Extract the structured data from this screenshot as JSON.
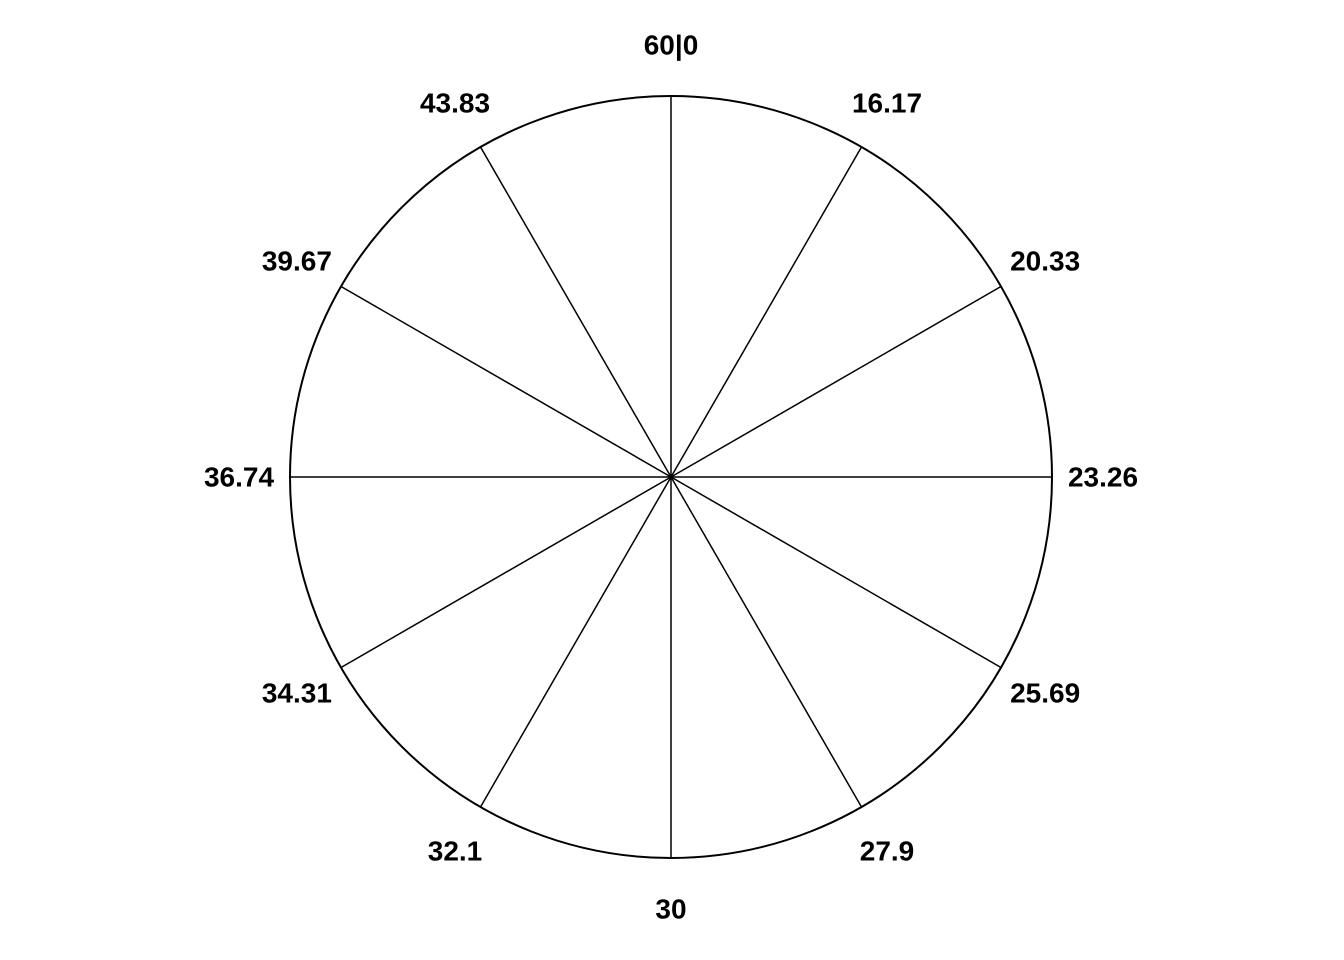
{
  "chart_data": {
    "type": "polar",
    "title": "",
    "grid": false,
    "colors": {
      "line": "#000000",
      "background": "#ffffff"
    },
    "angular_ticks": [
      {
        "label": "60|0",
        "angle_deg": 0
      },
      {
        "label": "16.17",
        "angle_deg": 30
      },
      {
        "label": "20.33",
        "angle_deg": 60
      },
      {
        "label": "23.26",
        "angle_deg": 90
      },
      {
        "label": "25.69",
        "angle_deg": 120
      },
      {
        "label": "27.9",
        "angle_deg": 150
      },
      {
        "label": "30",
        "angle_deg": 180
      },
      {
        "label": "32.1",
        "angle_deg": 210
      },
      {
        "label": "34.31",
        "angle_deg": 240
      },
      {
        "label": "36.74",
        "angle_deg": 270
      },
      {
        "label": "39.67",
        "angle_deg": 300
      },
      {
        "label": "43.83",
        "angle_deg": 330
      }
    ]
  }
}
